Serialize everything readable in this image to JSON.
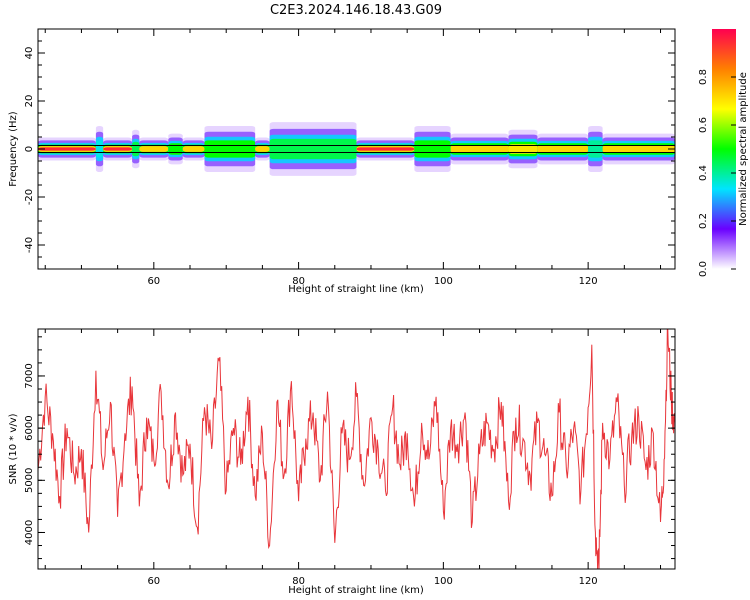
{
  "title": "C2E3.2024.146.18.43.G09",
  "chart_data": [
    {
      "type": "heatmap",
      "xlabel": "Height of straight line (km)",
      "ylabel": "Frequency (Hz)",
      "xlim": [
        44,
        132
      ],
      "ylim": [
        -50,
        50
      ],
      "x_ticks": [
        60,
        80,
        100,
        120
      ],
      "y_ticks": [
        -40,
        -20,
        0,
        20,
        40
      ],
      "grid": false,
      "center_line_value": 0,
      "band_segments": [
        {
          "x0": 44,
          "x1": 52,
          "level": 0.95,
          "halfwidth": 1.5
        },
        {
          "x0": 52,
          "x1": 53,
          "level": 0.35,
          "halfwidth": 3.0
        },
        {
          "x0": 53,
          "x1": 57,
          "level": 0.95,
          "halfwidth": 1.5
        },
        {
          "x0": 57,
          "x1": 58,
          "level": 0.45,
          "halfwidth": 2.5
        },
        {
          "x0": 58,
          "x1": 62,
          "level": 0.9,
          "halfwidth": 1.5
        },
        {
          "x0": 62,
          "x1": 64,
          "level": 0.6,
          "halfwidth": 2.0
        },
        {
          "x0": 64,
          "x1": 67,
          "level": 0.85,
          "halfwidth": 1.5
        },
        {
          "x0": 67,
          "x1": 74,
          "level": 0.55,
          "halfwidth": 3.0
        },
        {
          "x0": 74,
          "x1": 76,
          "level": 0.9,
          "halfwidth": 1.5
        },
        {
          "x0": 76,
          "x1": 88,
          "level": 0.45,
          "halfwidth": 3.5
        },
        {
          "x0": 88,
          "x1": 96,
          "level": 0.95,
          "halfwidth": 1.5
        },
        {
          "x0": 96,
          "x1": 101,
          "level": 0.65,
          "halfwidth": 3.0
        },
        {
          "x0": 101,
          "x1": 109,
          "level": 0.85,
          "halfwidth": 2.0
        },
        {
          "x0": 109,
          "x1": 113,
          "level": 0.7,
          "halfwidth": 2.5
        },
        {
          "x0": 113,
          "x1": 120,
          "level": 0.9,
          "halfwidth": 2.0
        },
        {
          "x0": 120,
          "x1": 122,
          "level": 0.4,
          "halfwidth": 3.0
        },
        {
          "x0": 122,
          "x1": 132,
          "level": 0.85,
          "halfwidth": 2.0
        }
      ],
      "colorbar": {
        "label": "Normalized spectral amplitude",
        "range": [
          0,
          1
        ],
        "ticks": [
          0.0,
          0.2,
          0.4,
          0.6,
          0.8
        ],
        "tick_labels": [
          "0.0",
          "0.2",
          "0.4",
          "0.6",
          "0.8"
        ],
        "colors": [
          "#ffffff",
          "#6a00ff",
          "#00e5ff",
          "#00ff00",
          "#ffff00",
          "#ff8000",
          "#ff0050"
        ]
      }
    },
    {
      "type": "line",
      "xlabel": "Height of straight line (km)",
      "ylabel": "SNR (10 * v/v)",
      "xlim": [
        44,
        132
      ],
      "ylim": [
        3300,
        7900
      ],
      "x_ticks": [
        60,
        80,
        100,
        120
      ],
      "y_ticks": [
        4000,
        5000,
        6000,
        7000
      ],
      "grid": false,
      "series": [
        {
          "color": "#e8353a",
          "x": [
            44.0,
            45.0,
            46.0,
            47.0,
            48.0,
            49.0,
            50.0,
            51.0,
            52.0,
            53.0,
            54.0,
            55.0,
            56.0,
            57.0,
            58.0,
            59.0,
            60.0,
            61.0,
            62.0,
            63.0,
            64.0,
            65.0,
            66.0,
            67.0,
            68.0,
            69.0,
            70.0,
            71.0,
            72.0,
            73.0,
            74.0,
            75.0,
            76.0,
            77.0,
            78.0,
            79.0,
            80.0,
            81.0,
            82.0,
            83.0,
            84.0,
            85.0,
            86.0,
            87.0,
            88.0,
            89.0,
            90.0,
            91.0,
            92.0,
            93.0,
            94.0,
            95.0,
            96.0,
            97.0,
            98.0,
            99.0,
            100.0,
            101.0,
            102.0,
            103.0,
            104.0,
            105.0,
            106.0,
            107.0,
            108.0,
            109.0,
            110.0,
            111.0,
            112.0,
            113.0,
            114.0,
            115.0,
            116.0,
            117.0,
            118.0,
            119.0,
            120.0,
            120.5,
            121.0,
            121.5,
            122.0,
            123.0,
            124.0,
            125.0,
            126.0,
            127.0,
            128.0,
            129.0,
            130.0,
            130.5,
            131.0,
            131.5,
            132.0
          ],
          "y": [
            5200,
            6600,
            5900,
            4700,
            6000,
            5100,
            5600,
            4000,
            7100,
            5200,
            6500,
            4300,
            5900,
            6800,
            4500,
            6200,
            5400,
            6700,
            4900,
            6300,
            5100,
            5700,
            4100,
            6400,
            5600,
            7300,
            4800,
            6000,
            5300,
            6600,
            4700,
            5900,
            3750,
            6500,
            5100,
            6900,
            4600,
            5800,
            6300,
            5000,
            6700,
            3800,
            5900,
            5400,
            6600,
            4900,
            6200,
            5600,
            4800,
            6400,
            5300,
            5900,
            4500,
            6100,
            5400,
            6600,
            4400,
            6000,
            5700,
            6300,
            4200,
            5500,
            6100,
            5600,
            6500,
            4600,
            6200,
            5800,
            5100,
            6100,
            5500,
            4700,
            6300,
            5200,
            6000,
            4800,
            6400,
            7600,
            4000,
            3300,
            6100,
            5400,
            6500,
            4900,
            5800,
            6200,
            5200,
            5900,
            4200,
            5400,
            7900,
            6500,
            6100
          ]
        }
      ]
    }
  ]
}
